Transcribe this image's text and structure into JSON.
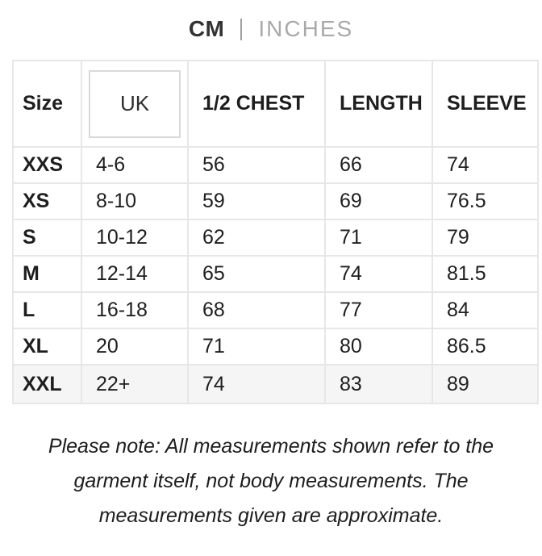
{
  "unit_toggle": {
    "cm_label": "CM",
    "inches_label": "INCHES",
    "selected": "CM",
    "active_color": "#333333",
    "inactive_color": "#a9a9a9"
  },
  "table": {
    "columns": {
      "size": "Size",
      "uk": "UK",
      "half_chest": "1/2 CHEST",
      "length": "LENGTH",
      "sleeve": "SLEEVE"
    },
    "rows": [
      {
        "size": "XXS",
        "uk": "4-6",
        "half_chest": "56",
        "length": "66",
        "sleeve": "74"
      },
      {
        "size": "XS",
        "uk": "8-10",
        "half_chest": "59",
        "length": "69",
        "sleeve": "76.5"
      },
      {
        "size": "S",
        "uk": "10-12",
        "half_chest": "62",
        "length": "71",
        "sleeve": "79"
      },
      {
        "size": "M",
        "uk": "12-14",
        "half_chest": "65",
        "length": "74",
        "sleeve": "81.5"
      },
      {
        "size": "L",
        "uk": "16-18",
        "half_chest": "68",
        "length": "77",
        "sleeve": "84"
      },
      {
        "size": "XL",
        "uk": "20",
        "half_chest": "71",
        "length": "80",
        "sleeve": "86.5"
      },
      {
        "size": "XXL",
        "uk": "22+",
        "half_chest": "74",
        "length": "83",
        "sleeve": "89"
      }
    ],
    "highlight_row_bg": "#f5f5f5",
    "border_color": "#e7e7e7"
  },
  "note": {
    "lines": [
      "Please note: All measurements shown refer to the",
      "garment itself, not body measurements. The",
      "measurements given are approximate."
    ]
  }
}
